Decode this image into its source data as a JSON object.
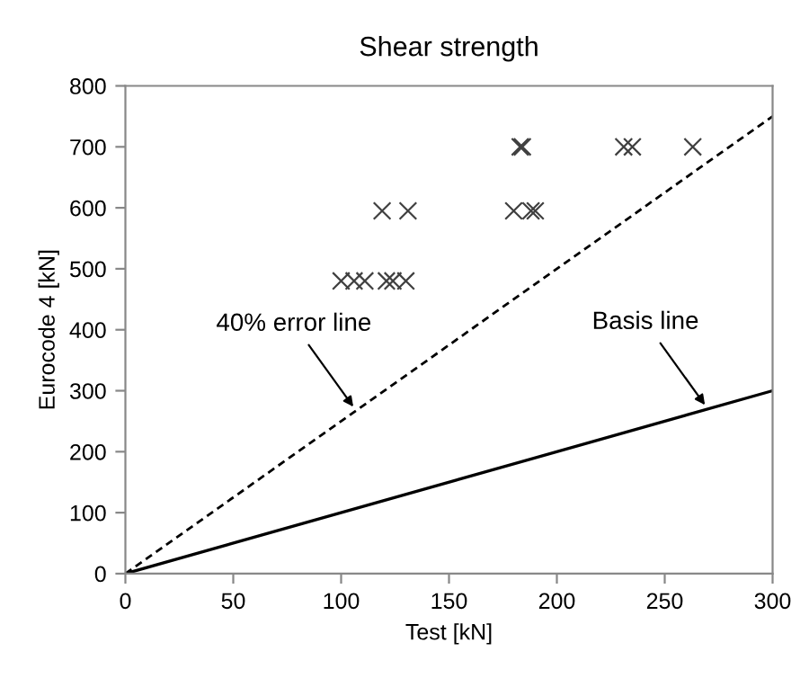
{
  "chart_data": {
    "type": "scatter",
    "title": "Shear strength",
    "xlabel": "Test [kN]",
    "ylabel": "Eurocode 4 [kN]",
    "xlim": [
      0,
      300
    ],
    "ylim": [
      0,
      800
    ],
    "xticks": [
      0,
      50,
      100,
      150,
      200,
      250,
      300
    ],
    "yticks": [
      0,
      100,
      200,
      300,
      400,
      500,
      600,
      700,
      800
    ],
    "grid": false,
    "legend": false,
    "marker": "cross",
    "series": [
      {
        "color": "#404040",
        "x": [
          183,
          184,
          231,
          235,
          263,
          119,
          131,
          180,
          188,
          190,
          100,
          106,
          111,
          121,
          124,
          130
        ],
        "values": [
          700,
          700,
          700,
          700,
          700,
          595,
          595,
          595,
          595,
          595,
          480,
          480,
          480,
          480,
          480,
          480
        ]
      },
      {
        "type": "line",
        "color": "#000000",
        "line_style": "dashed",
        "marker": "none",
        "x": [
          0,
          300
        ],
        "values": [
          0,
          750
        ]
      },
      {
        "type": "line",
        "color": "#000000",
        "line_style": "solid",
        "marker": "none",
        "x": [
          0,
          300
        ],
        "values": [
          0,
          300
        ]
      }
    ],
    "annotations": [
      {
        "text": "40% error line",
        "x": 107,
        "y": 267
      },
      {
        "text": "Basis line",
        "x": 270,
        "y": 270
      }
    ]
  }
}
